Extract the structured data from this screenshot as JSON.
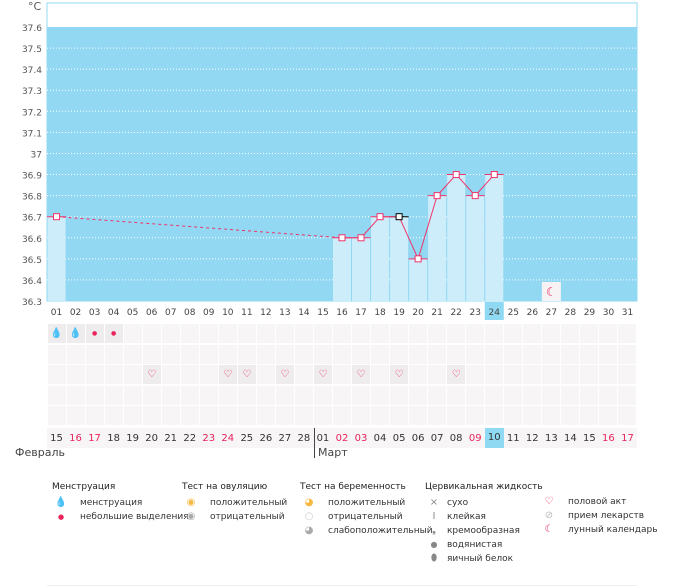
{
  "chart_data": {
    "type": "bar",
    "ylabel": "°C",
    "ylim": [
      36.3,
      37.6
    ],
    "yticks": [
      "37.6",
      "37.5",
      "37.4",
      "37.3",
      "37.2",
      "37.1",
      "37",
      "36.9",
      "36.8",
      "36.7",
      "36.6",
      "36.5",
      "36.4",
      "36.3"
    ],
    "categories": [
      "01",
      "02",
      "03",
      "04",
      "05",
      "06",
      "07",
      "08",
      "09",
      "10",
      "11",
      "12",
      "13",
      "14",
      "15",
      "16",
      "17",
      "18",
      "19",
      "20",
      "21",
      "22",
      "23",
      "24",
      "25",
      "26",
      "27",
      "28",
      "29",
      "30",
      "31"
    ],
    "temperatures": [
      {
        "day": 1,
        "value": 36.7
      },
      {
        "day": 16,
        "value": 36.6
      },
      {
        "day": 17,
        "value": 36.6
      },
      {
        "day": 18,
        "value": 36.7
      },
      {
        "day": 19,
        "value": 36.7,
        "marker": "black"
      },
      {
        "day": 20,
        "value": 36.5
      },
      {
        "day": 21,
        "value": 36.8
      },
      {
        "day": 22,
        "value": 36.9
      },
      {
        "day": 23,
        "value": 36.8
      },
      {
        "day": 24,
        "value": 36.9
      }
    ],
    "interpolated_segment": [
      1,
      16
    ],
    "current_day": 24,
    "moon_day": 27,
    "grid": true,
    "colors": {
      "background": "#92d8f2",
      "bar": "#cdedfb",
      "line": "#f0336a",
      "marker_alt": "#000000"
    }
  },
  "symbols": {
    "menstruation": {
      "heavy": [
        1,
        2
      ],
      "light": [
        3,
        4
      ]
    },
    "intercourse": [
      6,
      10,
      11,
      13,
      15,
      17,
      19,
      22
    ]
  },
  "dates": {
    "days": [
      "15",
      "16",
      "17",
      "18",
      "19",
      "20",
      "21",
      "22",
      "23",
      "24",
      "25",
      "26",
      "27",
      "28",
      "01",
      "02",
      "03",
      "04",
      "05",
      "06",
      "07",
      "08",
      "09",
      "10",
      "11",
      "12",
      "13",
      "14",
      "15",
      "16",
      "17"
    ],
    "red": [
      2,
      3,
      9,
      10,
      16,
      17,
      23,
      30,
      31
    ],
    "today": 24,
    "month1": "Февраль",
    "month2": "Март"
  },
  "legend": {
    "menstruation": {
      "title": "Менструация",
      "items": [
        "менструация",
        "небольшие выделения"
      ]
    },
    "ovulation": {
      "title": "Тест на овуляцию",
      "items": [
        "положительный",
        "отрицательный"
      ]
    },
    "pregnancy": {
      "title": "Тест на беременность",
      "items": [
        "положительный",
        "отрицательный",
        "слабоположительный"
      ]
    },
    "cervical": {
      "title": "Цервикальная жидкость",
      "items": [
        "сухо",
        "клейкая",
        "кремообразная",
        "водянистая",
        "яичный белок"
      ]
    },
    "other": {
      "items": [
        "половой акт",
        "прием лекарств",
        "лунный календарь"
      ]
    }
  }
}
